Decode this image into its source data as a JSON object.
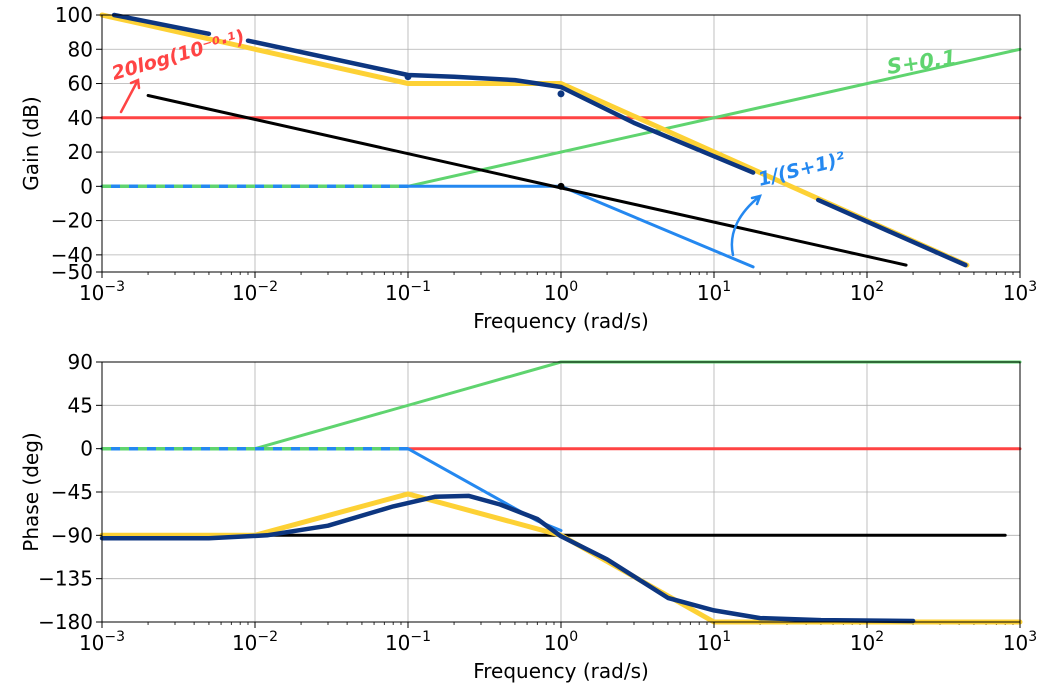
{
  "chart_data": [
    {
      "type": "line",
      "title": "",
      "xlabel": "Frequency (rad/s)",
      "ylabel": "Gain (dB)",
      "xscale": "log",
      "xlim": [
        0.001,
        1000
      ],
      "ylim": [
        -50,
        100
      ],
      "grid": true,
      "xticks": [
        0.001,
        0.01,
        0.1,
        1,
        10,
        100,
        1000
      ],
      "xtick_labels": [
        {
          "base": "10",
          "exp": "−3"
        },
        {
          "base": "10",
          "exp": "−2"
        },
        {
          "base": "10",
          "exp": "−1"
        },
        {
          "base": "10",
          "exp": "0"
        },
        {
          "base": "10",
          "exp": "1"
        },
        {
          "base": "10",
          "exp": "2"
        },
        {
          "base": "10",
          "exp": "3"
        }
      ],
      "yticks": [
        -50,
        -40,
        -20,
        0,
        20,
        40,
        60,
        80,
        100
      ],
      "ytick_labels": [
        "−50",
        "−40",
        "−20",
        "0",
        "20",
        "40",
        "60",
        "80",
        "100"
      ],
      "series": [
        {
          "color": "#ff4444",
          "width": 3,
          "x": [
            0.001,
            1000
          ],
          "y": [
            40,
            40
          ]
        },
        {
          "color": "#5fd46f",
          "width": 3,
          "x": [
            0.001,
            0.1,
            1000
          ],
          "y": [
            0,
            0,
            80
          ]
        },
        {
          "color": "#2488f0",
          "width": 3,
          "x": [
            0.001,
            1,
            18
          ],
          "y": [
            0,
            0,
            -47
          ]
        },
        {
          "color": "#000000",
          "width": 3,
          "x": [
            0.002,
            180
          ],
          "y": [
            53,
            -46
          ]
        },
        {
          "color": "#fdd135",
          "width": 5,
          "x": [
            0.001,
            0.1,
            1,
            450
          ],
          "y": [
            100,
            60,
            60,
            -46
          ]
        },
        {
          "color": "#0d3680",
          "width": 4.5,
          "segments": [
            {
              "x": [
                0.0012,
                0.005
              ],
              "y": [
                100,
                89
              ]
            },
            {
              "x": [
                0.009,
                0.1,
                0.2,
                0.5,
                1,
                3,
                18
              ],
              "y": [
                85,
                65,
                64,
                62,
                58,
                37,
                8
              ]
            },
            {
              "x": [
                48,
                440
              ],
              "y": [
                -8,
                -46
              ]
            }
          ]
        }
      ],
      "dashed_overlay": {
        "x": [
          0.001,
          0.1
        ],
        "y": [
          0,
          0
        ],
        "colors": [
          "#5fd46f",
          "#2488f0"
        ]
      },
      "markers": [
        {
          "x": 0.1,
          "y": 64,
          "color": "#0d3680"
        },
        {
          "x": 1,
          "y": 54,
          "color": "#0d3680"
        },
        {
          "x": 1,
          "y": 0,
          "color": "#000000"
        }
      ],
      "annotations": [
        {
          "text": "20log(10⁻⁰·¹)",
          "color": "#ff4444"
        },
        {
          "text": "S+0.1",
          "color": "#5fd46f"
        },
        {
          "text": "1/(S+1)²",
          "color": "#2488f0"
        }
      ]
    },
    {
      "type": "line",
      "title": "",
      "xlabel": "Frequency (rad/s)",
      "ylabel": "Phase (deg)",
      "xscale": "log",
      "xlim": [
        0.001,
        1000
      ],
      "ylim": [
        -180,
        90
      ],
      "grid": true,
      "xticks": [
        0.001,
        0.01,
        0.1,
        1,
        10,
        100,
        1000
      ],
      "xtick_labels": [
        {
          "base": "10",
          "exp": "−3"
        },
        {
          "base": "10",
          "exp": "−2"
        },
        {
          "base": "10",
          "exp": "−1"
        },
        {
          "base": "10",
          "exp": "0"
        },
        {
          "base": "10",
          "exp": "1"
        },
        {
          "base": "10",
          "exp": "2"
        },
        {
          "base": "10",
          "exp": "3"
        }
      ],
      "yticks": [
        -180,
        -135,
        -90,
        -45,
        0,
        45,
        90
      ],
      "ytick_labels": [
        "−180",
        "−135",
        "−90",
        "−45",
        "0",
        "45",
        "90"
      ],
      "series": [
        {
          "color": "#ff4444",
          "width": 3,
          "x": [
            0.001,
            1000
          ],
          "y": [
            0,
            0
          ]
        },
        {
          "color": "#5fd46f",
          "width": 3,
          "x": [
            0.001,
            0.01,
            1,
            1000
          ],
          "y": [
            0,
            0,
            90,
            90
          ]
        },
        {
          "color": "#2488f0",
          "width": 3,
          "x": [
            0.001,
            0.1,
            0.7,
            1
          ],
          "y": [
            0,
            0,
            -75,
            -85
          ]
        },
        {
          "color": "#000000",
          "width": 3,
          "x": [
            0.001,
            800
          ],
          "y": [
            -90,
            -90
          ]
        },
        {
          "color": "#fdd135",
          "width": 5,
          "x": [
            0.001,
            0.01,
            0.1,
            1,
            10,
            1000
          ],
          "y": [
            -90,
            -90,
            -47,
            -90,
            -180,
            -180
          ]
        },
        {
          "color": "#0d3680",
          "width": 4.5,
          "x": [
            0.001,
            0.005,
            0.012,
            0.03,
            0.08,
            0.15,
            0.25,
            0.4,
            0.7,
            1,
            2,
            5,
            10,
            20,
            50,
            200
          ],
          "y": [
            -93,
            -93,
            -90,
            -80,
            -60,
            -50,
            -49,
            -58,
            -73,
            -91,
            -115,
            -155,
            -168,
            -176,
            -178,
            -179
          ]
        }
      ],
      "dashed_overlay": {
        "x": [
          0.001,
          0.1
        ],
        "y": [
          0,
          0
        ],
        "colors": [
          "#5fd46f",
          "#2488f0"
        ]
      },
      "markers": [],
      "annotations": []
    }
  ]
}
